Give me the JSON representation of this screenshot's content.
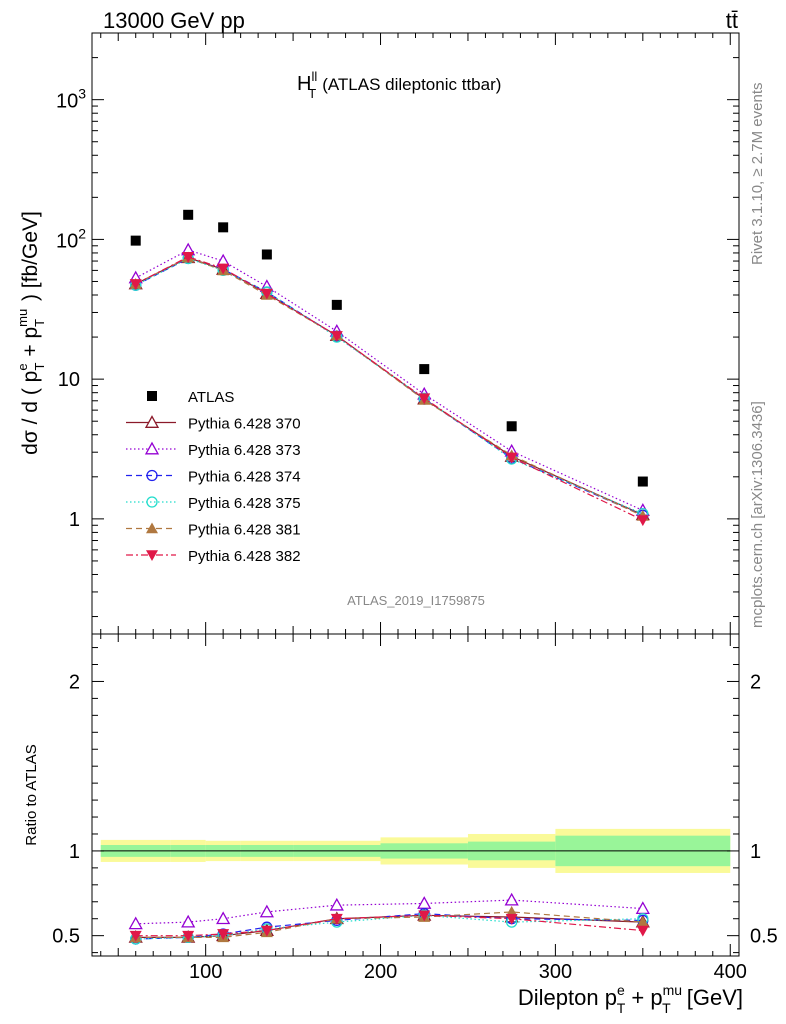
{
  "header": {
    "energy_label": "13000 GeV pp",
    "process_label": "tt̄"
  },
  "side_text": {
    "rivet": "Rivet 3.1.10, ≥ 2.7M events",
    "mcplots": "mcplots.cern.ch [arXiv:1306.3436]"
  },
  "colors": {
    "ATLAS": "#000000",
    "p370": "#8b1a2a",
    "p373": "#9400d3",
    "p374": "#2222ee",
    "p375": "#22ddcc",
    "p381": "#b07840",
    "p382": "#e01848",
    "band_inner": "#99f599",
    "band_outer": "#fafa99"
  },
  "chart_data": [
    {
      "type": "line",
      "panel": "main",
      "title": "H_T^ll (ATLAS dileptonic ttbar)",
      "title_main": "H",
      "title_sup": "ll",
      "title_sub": "T",
      "title_rest": "(ATLAS dileptonic ttbar)",
      "ylabel": "dσ / d ( p_T^e + p_T^mu ) [fb/GeV]",
      "watermark": "ATLAS_2019_I1759875",
      "xlim": [
        35,
        405
      ],
      "ylim": [
        0.15,
        3000
      ],
      "yscale": "log",
      "ytick_labels": [
        "1",
        "10",
        "10^2",
        "10^3"
      ],
      "x": [
        60,
        90,
        110,
        135,
        175,
        225,
        275,
        350
      ],
      "series": [
        {
          "name": "ATLAS",
          "style": "data",
          "values": [
            98,
            150,
            122,
            78,
            34,
            11.8,
            4.6,
            1.85
          ]
        },
        {
          "name": "Pythia 6.428 370",
          "style": "solid",
          "marker": "triangle-open",
          "values": [
            48,
            74,
            61,
            41,
            20.5,
            7.2,
            2.8,
            1.07
          ]
        },
        {
          "name": "Pythia 6.428 373",
          "style": "dotted",
          "marker": "triangle-open",
          "values": [
            53,
            84,
            70,
            46,
            22,
            7.8,
            3.05,
            1.15
          ]
        },
        {
          "name": "Pythia 6.428 374",
          "style": "dashed",
          "marker": "circle-open",
          "values": [
            47,
            73,
            61,
            42,
            20.3,
            7.2,
            2.72,
            1.06
          ]
        },
        {
          "name": "Pythia 6.428 375",
          "style": "dotted",
          "marker": "circle-open",
          "values": [
            47,
            73,
            60,
            42,
            20,
            7.3,
            2.68,
            1.09
          ]
        },
        {
          "name": "Pythia 6.428 381",
          "style": "dashed",
          "marker": "triangle-filled",
          "values": [
            48,
            74,
            60,
            40,
            20.5,
            7.1,
            2.85,
            1.05
          ]
        },
        {
          "name": "Pythia 6.428 382",
          "style": "dashdot",
          "marker": "triangle-down-filled",
          "values": [
            48,
            75,
            62,
            41,
            20.4,
            7.3,
            2.75,
            0.98
          ]
        }
      ]
    },
    {
      "type": "line",
      "panel": "ratio",
      "ylabel": "Ratio to ATLAS",
      "xlabel": "Dilepton p_T^e + p_T^mu [GeV]",
      "xlim": [
        35,
        405
      ],
      "ylim": [
        0.38,
        2.28
      ],
      "xtick_labels": [
        "100",
        "200",
        "300",
        "400"
      ],
      "ytick_labels": [
        "0.5",
        "1",
        "2"
      ],
      "band_edges": [
        40,
        80,
        100,
        120,
        150,
        200,
        250,
        300,
        400
      ],
      "band_inner_halfwidth": [
        0.035,
        0.035,
        0.035,
        0.035,
        0.035,
        0.045,
        0.055,
        0.09
      ],
      "band_outer_halfwidth": [
        0.065,
        0.065,
        0.06,
        0.06,
        0.06,
        0.08,
        0.1,
        0.13
      ],
      "x": [
        60,
        90,
        110,
        135,
        175,
        225,
        275,
        350
      ],
      "series": [
        {
          "name": "Pythia 6.428 370",
          "values": [
            0.49,
            0.49,
            0.5,
            0.53,
            0.6,
            0.62,
            0.61,
            0.58
          ]
        },
        {
          "name": "Pythia 6.428 373",
          "values": [
            0.57,
            0.58,
            0.6,
            0.64,
            0.68,
            0.69,
            0.71,
            0.66
          ]
        },
        {
          "name": "Pythia 6.428 374",
          "values": [
            0.48,
            0.49,
            0.51,
            0.55,
            0.59,
            0.63,
            0.6,
            0.59
          ]
        },
        {
          "name": "Pythia 6.428 375",
          "values": [
            0.48,
            0.49,
            0.5,
            0.54,
            0.58,
            0.62,
            0.58,
            0.6
          ]
        },
        {
          "name": "Pythia 6.428 381",
          "values": [
            0.49,
            0.49,
            0.49,
            0.52,
            0.6,
            0.61,
            0.64,
            0.58
          ]
        },
        {
          "name": "Pythia 6.428 382",
          "values": [
            0.5,
            0.5,
            0.51,
            0.53,
            0.6,
            0.62,
            0.6,
            0.53
          ]
        }
      ]
    }
  ]
}
